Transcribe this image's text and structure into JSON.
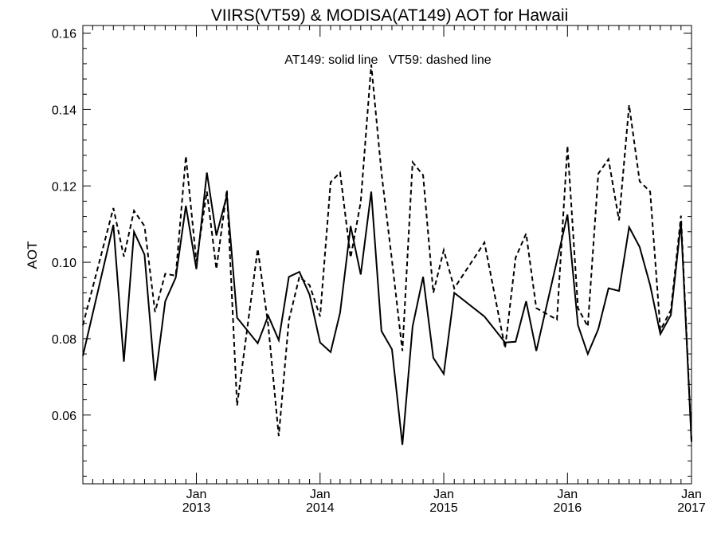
{
  "chart_data": {
    "type": "line",
    "title": "VIIRS(VT59) & MODISA(AT149)  AOT for Hawaii",
    "ylabel": "AOT",
    "xlabel": "",
    "annotation": "AT149: solid line   VT59: dashed line",
    "xlim": [
      "2012-02-01",
      "2017-01-01"
    ],
    "ylim": [
      0.042,
      0.162
    ],
    "yticks": [
      "0.06",
      "0.08",
      "0.10",
      "0.12",
      "0.14",
      "0.16"
    ],
    "xticks": [
      {
        "date": "2013-01-01",
        "month": "Jan",
        "year": "2013"
      },
      {
        "date": "2014-01-01",
        "month": "Jan",
        "year": "2014"
      },
      {
        "date": "2015-01-01",
        "month": "Jan",
        "year": "2015"
      },
      {
        "date": "2016-01-01",
        "month": "Jan",
        "year": "2016"
      },
      {
        "date": "2017-01-01",
        "month": "Jan",
        "year": "2017"
      }
    ],
    "grid": false,
    "series": [
      {
        "name": "AT149",
        "style": "solid",
        "color": "#000000",
        "points": [
          [
            "2012-02-01",
            0.0755
          ],
          [
            "2012-05-01",
            0.1098
          ],
          [
            "2012-06-01",
            0.074
          ],
          [
            "2012-07-01",
            0.108
          ],
          [
            "2012-08-01",
            0.102
          ],
          [
            "2012-09-01",
            0.069
          ],
          [
            "2012-10-01",
            0.0898
          ],
          [
            "2012-11-01",
            0.096
          ],
          [
            "2012-12-01",
            0.1148
          ],
          [
            "2013-01-01",
            0.0982
          ],
          [
            "2013-02-01",
            0.1235
          ],
          [
            "2013-03-01",
            0.107
          ],
          [
            "2013-04-01",
            0.1175
          ],
          [
            "2013-05-01",
            0.0855
          ],
          [
            "2013-07-01",
            0.0788
          ],
          [
            "2013-08-01",
            0.086
          ],
          [
            "2013-09-01",
            0.0796
          ],
          [
            "2013-10-01",
            0.0962
          ],
          [
            "2013-11-01",
            0.0975
          ],
          [
            "2013-12-01",
            0.0915
          ],
          [
            "2014-01-01",
            0.079
          ],
          [
            "2014-02-01",
            0.0765
          ],
          [
            "2014-03-01",
            0.0868
          ],
          [
            "2014-04-01",
            0.1095
          ],
          [
            "2014-05-01",
            0.0968
          ],
          [
            "2014-06-01",
            0.1185
          ],
          [
            "2014-07-01",
            0.082
          ],
          [
            "2014-08-01",
            0.0772
          ],
          [
            "2014-09-01",
            0.0522
          ],
          [
            "2014-10-01",
            0.0832
          ],
          [
            "2014-11-01",
            0.0962
          ],
          [
            "2014-12-01",
            0.075
          ],
          [
            "2015-01-01",
            0.0708
          ],
          [
            "2015-02-01",
            0.092
          ],
          [
            "2015-05-01",
            0.0858
          ],
          [
            "2015-07-01",
            0.079
          ],
          [
            "2015-08-01",
            0.0792
          ],
          [
            "2015-09-01",
            0.0898
          ],
          [
            "2015-10-01",
            0.0768
          ],
          [
            "2016-01-01",
            0.1125
          ],
          [
            "2016-02-01",
            0.0835
          ],
          [
            "2016-03-01",
            0.076
          ],
          [
            "2016-04-01",
            0.0825
          ],
          [
            "2016-05-01",
            0.0932
          ],
          [
            "2016-06-01",
            0.0925
          ],
          [
            "2016-07-01",
            0.1092
          ],
          [
            "2016-08-01",
            0.104
          ],
          [
            "2016-09-01",
            0.094
          ],
          [
            "2016-10-01",
            0.0812
          ],
          [
            "2016-11-01",
            0.0862
          ],
          [
            "2016-12-01",
            0.1105
          ],
          [
            "2017-01-01",
            0.053
          ]
        ]
      },
      {
        "name": "VT59",
        "style": "dashed",
        "color": "#000000",
        "points": [
          [
            "2012-02-01",
            0.0835
          ],
          [
            "2012-05-01",
            0.1142
          ],
          [
            "2012-06-01",
            0.1015
          ],
          [
            "2012-07-01",
            0.1135
          ],
          [
            "2012-08-01",
            0.1095
          ],
          [
            "2012-09-01",
            0.087
          ],
          [
            "2012-10-01",
            0.097
          ],
          [
            "2012-11-01",
            0.0965
          ],
          [
            "2012-12-01",
            0.1278
          ],
          [
            "2013-01-01",
            0.1002
          ],
          [
            "2013-02-01",
            0.1185
          ],
          [
            "2013-03-01",
            0.0982
          ],
          [
            "2013-04-01",
            0.119
          ],
          [
            "2013-05-01",
            0.0625
          ],
          [
            "2013-07-01",
            0.1035
          ],
          [
            "2013-08-01",
            0.0835
          ],
          [
            "2013-09-01",
            0.0545
          ],
          [
            "2013-10-01",
            0.0848
          ],
          [
            "2013-11-01",
            0.0962
          ],
          [
            "2013-12-01",
            0.094
          ],
          [
            "2014-01-01",
            0.0858
          ],
          [
            "2014-02-01",
            0.121
          ],
          [
            "2014-03-01",
            0.1235
          ],
          [
            "2014-04-01",
            0.1012
          ],
          [
            "2014-05-01",
            0.1158
          ],
          [
            "2014-06-01",
            0.1518
          ],
          [
            "2014-07-01",
            0.1235
          ],
          [
            "2014-08-01",
            0.1005
          ],
          [
            "2014-09-01",
            0.0768
          ],
          [
            "2014-10-01",
            0.1262
          ],
          [
            "2014-11-01",
            0.1228
          ],
          [
            "2014-12-01",
            0.092
          ],
          [
            "2015-01-01",
            0.1032
          ],
          [
            "2015-02-01",
            0.0932
          ],
          [
            "2015-05-01",
            0.1052
          ],
          [
            "2015-07-01",
            0.0775
          ],
          [
            "2015-08-01",
            0.1012
          ],
          [
            "2015-09-01",
            0.1075
          ],
          [
            "2015-10-01",
            0.088
          ],
          [
            "2015-12-01",
            0.085
          ],
          [
            "2016-01-01",
            0.1305
          ],
          [
            "2016-02-01",
            0.088
          ],
          [
            "2016-03-01",
            0.0832
          ],
          [
            "2016-04-01",
            0.1232
          ],
          [
            "2016-05-01",
            0.127
          ],
          [
            "2016-06-01",
            0.111
          ],
          [
            "2016-07-01",
            0.1412
          ],
          [
            "2016-08-01",
            0.1212
          ],
          [
            "2016-09-01",
            0.1185
          ],
          [
            "2016-10-01",
            0.0822
          ],
          [
            "2016-11-01",
            0.0875
          ],
          [
            "2016-12-01",
            0.1122
          ],
          [
            "2017-01-01",
            0.0535
          ]
        ]
      }
    ]
  }
}
